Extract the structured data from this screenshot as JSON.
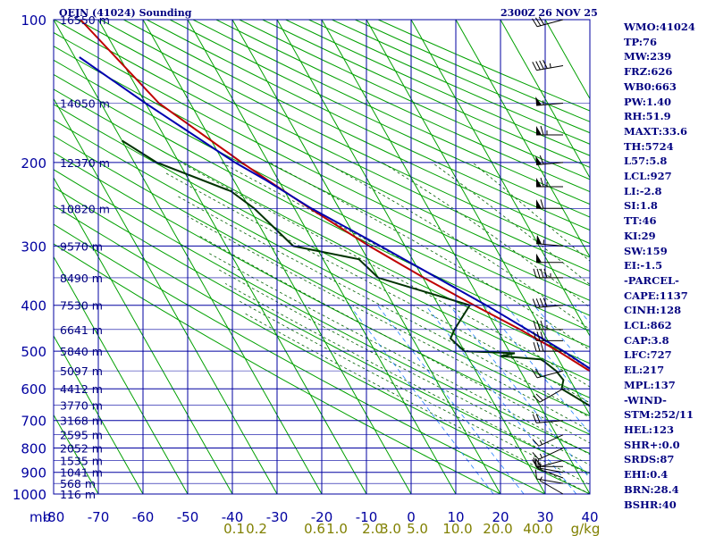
{
  "header": {
    "station": "OEJN (41024) Sounding",
    "time": "2300Z 26 NOV 25"
  },
  "indices": [
    "WMO:41024",
    "TP:76",
    "MW:239",
    "FRZ:626",
    "WB0:663",
    "PW:1.40",
    "RH:51.9",
    "MAXT:33.6",
    "TH:5724",
    "L57:5.8",
    "LCL:927",
    "LI:-2.8",
    "SI:1.8",
    "TT:46",
    "KI:29",
    "SW:159",
    "EI:-1.5",
    "-PARCEL-",
    "CAPE:1137",
    "CINH:128",
    "LCL:862",
    "CAP:3.8",
    "LFC:727",
    "EL:217",
    "MPL:137",
    "-WIND-",
    "STM:252/11",
    "HEL:123",
    "SHR+:0.0",
    "SRDS:87",
    "EHI:0.4",
    "BRN:28.4",
    "BSHR:40"
  ],
  "chart_data": {
    "type": "line",
    "pressure_ticks": [
      {
        "p": 100,
        "label": "100"
      },
      {
        "p": 200,
        "label": "200"
      },
      {
        "p": 300,
        "label": "300"
      },
      {
        "p": 400,
        "label": "400"
      },
      {
        "p": 500,
        "label": "500"
      },
      {
        "p": 600,
        "label": "600"
      },
      {
        "p": 700,
        "label": "700"
      },
      {
        "p": 800,
        "label": "800"
      },
      {
        "p": 900,
        "label": "900"
      },
      {
        "p": 1000,
        "label": "1000"
      }
    ],
    "pressure_unit_label": "mb",
    "temperature_ticks": [
      {
        "t": -80,
        "label": "-80"
      },
      {
        "t": -70,
        "label": "-70"
      },
      {
        "t": -60,
        "label": "-60"
      },
      {
        "t": -50,
        "label": "-50"
      },
      {
        "t": -40,
        "label": "-40"
      },
      {
        "t": -30,
        "label": "-30"
      },
      {
        "t": -20,
        "label": "-20"
      },
      {
        "t": -10,
        "label": "-10"
      },
      {
        "t": 0,
        "label": "0"
      },
      {
        "t": 10,
        "label": "10"
      },
      {
        "t": 20,
        "label": "20"
      },
      {
        "t": 30,
        "label": "30"
      },
      {
        "t": 40,
        "label": "40"
      }
    ],
    "mixing_ratio_labels": [
      {
        "label": "0.1",
        "t": -39.6
      },
      {
        "label": "0.2",
        "t": -34.6
      },
      {
        "label": "0.6",
        "t": -21.6
      },
      {
        "label": "1.0",
        "t": -16.6
      },
      {
        "label": "2.0",
        "t": -8.6
      },
      {
        "label": "3.0",
        "t": -4.6
      },
      {
        "label": "5.0",
        "t": 1.4
      },
      {
        "label": "10.0",
        "t": 10.4
      },
      {
        "label": "20.0",
        "t": 19.4
      },
      {
        "label": "40.0",
        "t": 28.4
      }
    ],
    "mixing_ratio_unit": "g/kg",
    "height_labels": [
      {
        "p": 100,
        "label": "16550 m"
      },
      {
        "p": 150,
        "label": "14050 m"
      },
      {
        "p": 200,
        "label": "12370 m"
      },
      {
        "p": 250,
        "label": "10820 m"
      },
      {
        "p": 300,
        "label": "9570 m"
      },
      {
        "p": 350,
        "label": "8490 m"
      },
      {
        "p": 400,
        "label": "7530 m"
      },
      {
        "p": 450,
        "label": "6641 m"
      },
      {
        "p": 500,
        "label": "5840 m"
      },
      {
        "p": 550,
        "label": "5097 m"
      },
      {
        "p": 600,
        "label": "4412 m"
      },
      {
        "p": 650,
        "label": "3770 m"
      },
      {
        "p": 700,
        "label": "3168 m"
      },
      {
        "p": 750,
        "label": "2595 m"
      },
      {
        "p": 800,
        "label": "2052 m"
      },
      {
        "p": 850,
        "label": "1535 m"
      },
      {
        "p": 900,
        "label": "1041 m"
      },
      {
        "p": 950,
        "label": "568 m"
      },
      {
        "p": 1000,
        "label": "116 m"
      }
    ],
    "series": [
      {
        "key": "temperature",
        "color": "#c00000",
        "points": [
          [
            1000,
            27
          ],
          [
            980,
            26.4
          ],
          [
            950,
            23.4
          ],
          [
            925,
            21.6
          ],
          [
            900,
            18.9
          ],
          [
            875,
            17.5
          ],
          [
            850,
            16
          ],
          [
            825,
            14
          ],
          [
            800,
            11.5
          ],
          [
            775,
            10
          ],
          [
            750,
            10
          ],
          [
            725,
            9
          ],
          [
            700,
            7.8
          ],
          [
            650,
            4.5
          ],
          [
            600,
            -0.3
          ],
          [
            550,
            -4.5
          ],
          [
            500,
            -9
          ],
          [
            450,
            -14.8
          ],
          [
            400,
            -22
          ],
          [
            350,
            -29.8
          ],
          [
            300,
            -38
          ],
          [
            250,
            -46.5
          ],
          [
            220,
            -52
          ],
          [
            200,
            -56
          ],
          [
            150,
            -67
          ],
          [
            100,
            -74
          ]
        ]
      },
      {
        "key": "dewpoint",
        "color": "#003300",
        "points": [
          [
            1000,
            16
          ],
          [
            980,
            15.8
          ],
          [
            950,
            15
          ],
          [
            925,
            14
          ],
          [
            900,
            11
          ],
          [
            875,
            7
          ],
          [
            850,
            5
          ],
          [
            825,
            5
          ],
          [
            800,
            5
          ],
          [
            775,
            -3
          ],
          [
            750,
            -4
          ],
          [
            725,
            -5
          ],
          [
            700,
            -5.5
          ],
          [
            650,
            -9
          ],
          [
            600,
            -13
          ],
          [
            575,
            -11.5
          ],
          [
            550,
            -12
          ],
          [
            525,
            -13.5
          ],
          [
            520,
            -14
          ],
          [
            512,
            -22.5
          ],
          [
            505,
            -19
          ],
          [
            500,
            -30
          ],
          [
            470,
            -31.5
          ],
          [
            450,
            -29.5
          ],
          [
            400,
            -23
          ],
          [
            350,
            -40
          ],
          [
            320,
            -42
          ],
          [
            300,
            -55
          ],
          [
            250,
            -59
          ],
          [
            230,
            -62
          ],
          [
            200,
            -75
          ],
          [
            180,
            -80
          ]
        ]
      },
      {
        "key": "parcel",
        "color": "#0000b0",
        "points": [
          [
            1000,
            29.6
          ],
          [
            950,
            25.5
          ],
          [
            900,
            21.2
          ],
          [
            862,
            17.8
          ],
          [
            800,
            13.5
          ],
          [
            727,
            9.2
          ],
          [
            700,
            7.6
          ],
          [
            600,
            0.2
          ],
          [
            500,
            -7.8
          ],
          [
            400,
            -19.3
          ],
          [
            300,
            -35.5
          ],
          [
            250,
            -46.2
          ],
          [
            217,
            -53
          ],
          [
            200,
            -57.5
          ],
          [
            150,
            -70
          ],
          [
            120,
            -79
          ]
        ]
      }
    ],
    "wind_barbs": [
      {
        "p": 1000,
        "dir": 300,
        "spd": 5
      },
      {
        "p": 950,
        "dir": 280,
        "spd": 10
      },
      {
        "p": 925,
        "dir": 290,
        "spd": 10
      },
      {
        "p": 900,
        "dir": 280,
        "spd": 15
      },
      {
        "p": 875,
        "dir": 270,
        "spd": 15
      },
      {
        "p": 850,
        "dir": 255,
        "spd": 20
      },
      {
        "p": 800,
        "dir": 245,
        "spd": 15
      },
      {
        "p": 750,
        "dir": 245,
        "spd": 15
      },
      {
        "p": 700,
        "dir": 265,
        "spd": 20
      },
      {
        "p": 600,
        "dir": 240,
        "spd": 20
      },
      {
        "p": 550,
        "dir": 255,
        "spd": 20
      },
      {
        "p": 500,
        "dir": 270,
        "spd": 30
      },
      {
        "p": 475,
        "dir": 270,
        "spd": 30
      },
      {
        "p": 450,
        "dir": 270,
        "spd": 35
      },
      {
        "p": 400,
        "dir": 265,
        "spd": 40
      },
      {
        "p": 350,
        "dir": 270,
        "spd": 45
      },
      {
        "p": 325,
        "dir": 270,
        "spd": 50
      },
      {
        "p": 300,
        "dir": 275,
        "spd": 55
      },
      {
        "p": 250,
        "dir": 270,
        "spd": 60
      },
      {
        "p": 225,
        "dir": 270,
        "spd": 65
      },
      {
        "p": 200,
        "dir": 265,
        "spd": 60
      },
      {
        "p": 175,
        "dir": 270,
        "spd": 65
      },
      {
        "p": 150,
        "dir": 265,
        "spd": 55
      },
      {
        "p": 125,
        "dir": 260,
        "spd": 45
      },
      {
        "p": 100,
        "dir": 255,
        "spd": 30
      }
    ],
    "colors": {
      "grid": "#0000a0",
      "dry_adiabat": "#00a000",
      "moist_adiabat": "#006000",
      "mixing_ratio": "#2080ff",
      "text": "#000080",
      "mr_text": "#808000"
    },
    "axis_ranges": {
      "temperature": [
        -80,
        40
      ],
      "pressure": [
        1000,
        100
      ]
    },
    "grid": true,
    "skewed_isotherms": true,
    "log_pressure": true
  }
}
